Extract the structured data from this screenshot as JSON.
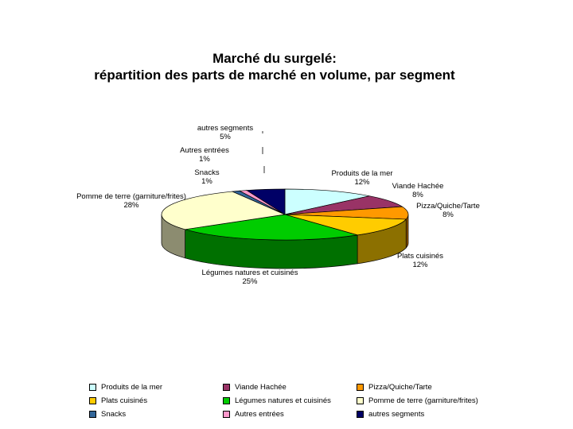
{
  "chart_data": {
    "type": "pie",
    "title_line1": "Marché du surgelé:",
    "title_line2": "répartition des parts de marché en volume, par segment",
    "three_d": true,
    "legend_placement": "bottom",
    "slices": [
      {
        "label": "Produits de la mer",
        "value": 12,
        "value_label": "12%",
        "color": "#ccffff"
      },
      {
        "label": "Viande Hachée",
        "value": 8,
        "value_label": "8%",
        "color": "#993366"
      },
      {
        "label": "Pizza/Quiche/Tarte",
        "value": 8,
        "value_label": "8%",
        "color": "#ff9900"
      },
      {
        "label": "Plats cuisinés",
        "value": 12,
        "value_label": "12%",
        "color": "#ffcc00"
      },
      {
        "label": "Légumes natures et cuisinés",
        "value": 25,
        "value_label": "25%",
        "color": "#00cc00"
      },
      {
        "label": "Pomme de terre (garniture/frites)",
        "value": 28,
        "value_label": "28%",
        "color": "#ffffcc"
      },
      {
        "label": "Snacks",
        "value": 1,
        "value_label": "1%",
        "color": "#336699"
      },
      {
        "label": "Autres entrées",
        "value": 1,
        "value_label": "1%",
        "color": "#ff99cc"
      },
      {
        "label": "autres segments",
        "value": 5,
        "value_label": "5%",
        "color": "#000066"
      }
    ],
    "slice_display_labels": [
      "Produits de la mer",
      "Viande Hachée",
      "Pizza/Quiche/Tarte",
      "Plats cuisinés",
      "Légumes natures et cuisinés",
      "Pomme de terre (garniture/frites)",
      "Snacks",
      "Autres entrées",
      "autres segments"
    ]
  }
}
